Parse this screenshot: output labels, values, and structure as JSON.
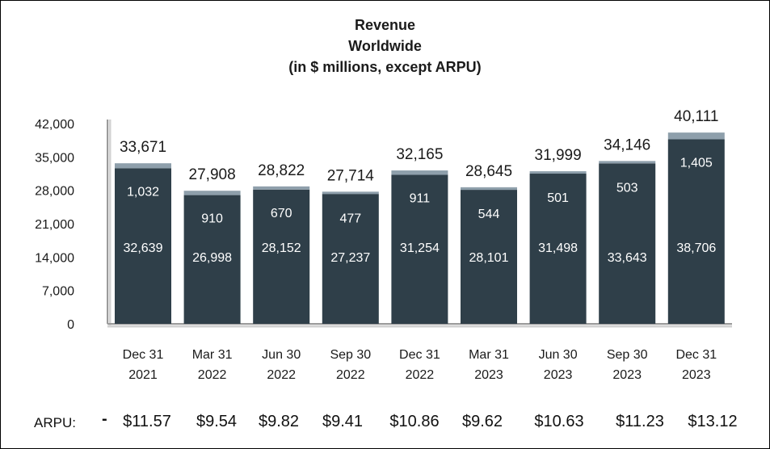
{
  "title": {
    "line1": "Revenue",
    "line2": "Worldwide",
    "line3": "(in $ millions, except ARPU)"
  },
  "chart_data": {
    "type": "bar",
    "stacked": true,
    "categories": [
      [
        "Dec 31",
        "2021"
      ],
      [
        "Mar 31",
        "2022"
      ],
      [
        "Jun 30",
        "2022"
      ],
      [
        "Sep 30",
        "2022"
      ],
      [
        "Dec 31",
        "2022"
      ],
      [
        "Mar 31",
        "2023"
      ],
      [
        "Jun 30",
        "2023"
      ],
      [
        "Sep 30",
        "2023"
      ],
      [
        "Dec 31",
        "2023"
      ]
    ],
    "series": [
      {
        "color": "#2f3f49",
        "values": [
          32639,
          26998,
          28152,
          27237,
          31254,
          28101,
          31498,
          33643,
          38706
        ],
        "labels": [
          "32,639",
          "26,998",
          "28,152",
          "27,237",
          "31,254",
          "28,101",
          "31,498",
          "33,643",
          "38,706"
        ]
      },
      {
        "color": "#8e9fab",
        "values": [
          1032,
          910,
          670,
          477,
          911,
          544,
          501,
          503,
          1405
        ],
        "labels": [
          "1,032",
          "910",
          "670",
          "477",
          "911",
          "544",
          "501",
          "503",
          "1,405"
        ]
      }
    ],
    "totals": [
      33671,
      27908,
      28822,
      27714,
      32165,
      28645,
      31999,
      34146,
      40111
    ],
    "total_labels": [
      "33,671",
      "27,908",
      "28,822",
      "27,714",
      "32,165",
      "28,645",
      "31,999",
      "34,146",
      "40,111"
    ],
    "y_ticks": [
      0,
      7000,
      14000,
      21000,
      28000,
      35000,
      42000
    ],
    "y_tick_labels": [
      "0",
      "7,000",
      "14,000",
      "21,000",
      "28,000",
      "35,000",
      "42,000"
    ],
    "ylim": [
      0,
      42000
    ],
    "grid": false,
    "legend": "none"
  },
  "arpu": {
    "label": "ARPU:",
    "dash": "-",
    "values": [
      "$11.57",
      "$9.54",
      "$9.82",
      "$9.41",
      "$10.86",
      "$9.62",
      "$10.63",
      "$11.23",
      "$13.12"
    ]
  }
}
